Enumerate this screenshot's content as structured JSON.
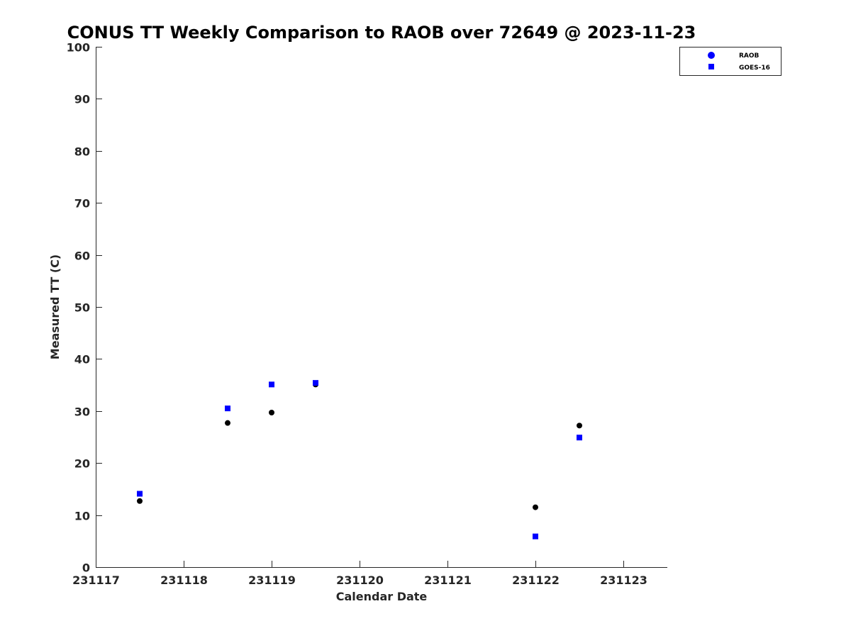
{
  "chart_data": {
    "type": "scatter",
    "title": "CONUS TT Weekly Comparison to RAOB over 72649 @ 2023-11-23",
    "xlabel": "Calendar Date",
    "ylabel": "Measured TT (C)",
    "xlim": [
      231117,
      231123.5
    ],
    "ylim": [
      0,
      100
    ],
    "x_ticks": [
      231117,
      231118,
      231119,
      231120,
      231121,
      231122,
      231123
    ],
    "x_tick_labels": [
      "231117",
      "231118",
      "231119",
      "231120",
      "231121",
      "231122",
      "231123"
    ],
    "y_ticks": [
      0,
      10,
      20,
      30,
      40,
      50,
      60,
      70,
      80,
      90,
      100
    ],
    "y_tick_labels": [
      "0",
      "10",
      "20",
      "30",
      "40",
      "50",
      "60",
      "70",
      "80",
      "90",
      "100"
    ],
    "grid": false,
    "legend_position": "top-right",
    "series": [
      {
        "name": "RAOB",
        "marker": "circle",
        "legend_color": "#0000ff",
        "color": "#000000",
        "x": [
          231117.5,
          231118.5,
          231119.0,
          231119.5,
          231122.0,
          231122.5
        ],
        "y": [
          12.7,
          27.7,
          29.7,
          35.1,
          11.5,
          27.2
        ]
      },
      {
        "name": "GOES-16",
        "marker": "square",
        "legend_color": "#0000ff",
        "color": "#0000ff",
        "x": [
          231117.5,
          231118.5,
          231119.0,
          231119.5,
          231122.0,
          231122.5
        ],
        "y": [
          14.1,
          30.5,
          35.1,
          35.4,
          5.9,
          24.9
        ]
      }
    ]
  }
}
